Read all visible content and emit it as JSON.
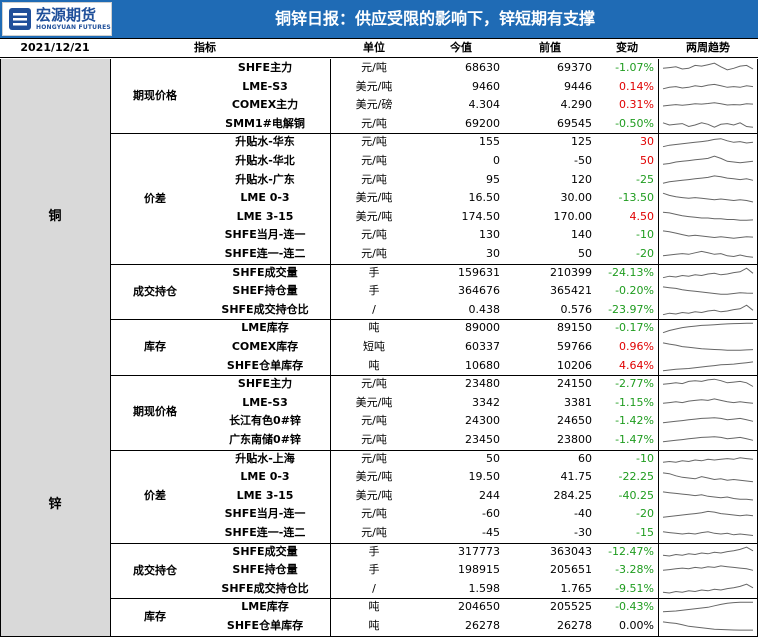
{
  "header": {
    "logo_cn": "宏源期货",
    "logo_en": "HONGYUAN FUTURES",
    "title": "铜锌日报：供应受限的影响下，锌短期有支撑"
  },
  "columns": {
    "date": "2021/12/21",
    "indicator": "指标",
    "unit": "单位",
    "current": "今值",
    "previous": "前值",
    "change": "变动",
    "trend": "两周趋势"
  },
  "sections": [
    {
      "metal": "铜",
      "groups": [
        {
          "name": "期现价格",
          "rows": [
            {
              "label": "SHFE主力",
              "unit": "元/吨",
              "current": "68630",
              "previous": "69370",
              "change": "-1.07%",
              "dir": "neg",
              "trend": [
                0.5,
                0.55,
                0.6,
                0.45,
                0.5,
                0.7,
                0.65,
                0.75,
                0.85,
                0.6,
                0.4,
                0.5,
                0.65,
                0.7,
                0.45
              ]
            },
            {
              "label": "LME-S3",
              "unit": "美元/吨",
              "current": "9460",
              "previous": "9446",
              "change": "0.14%",
              "dir": "pos",
              "trend": [
                0.4,
                0.5,
                0.55,
                0.45,
                0.5,
                0.6,
                0.55,
                0.65,
                0.7,
                0.6,
                0.5,
                0.55,
                0.5,
                0.6,
                0.55
              ]
            },
            {
              "label": "COMEX主力",
              "unit": "美元/磅",
              "current": "4.304",
              "previous": "4.290",
              "change": "0.31%",
              "dir": "pos",
              "trend": [
                0.45,
                0.5,
                0.55,
                0.5,
                0.55,
                0.6,
                0.58,
                0.62,
                0.68,
                0.6,
                0.52,
                0.55,
                0.53,
                0.6,
                0.58
              ]
            },
            {
              "label": "SMM1#电解铜",
              "unit": "元/吨",
              "current": "69200",
              "previous": "69545",
              "change": "-0.50%",
              "dir": "neg",
              "trend": [
                0.6,
                0.45,
                0.5,
                0.55,
                0.35,
                0.45,
                0.6,
                0.5,
                0.3,
                0.5,
                0.55,
                0.45,
                0.6,
                0.35,
                0.3
              ]
            }
          ]
        },
        {
          "name": "价差",
          "rows": [
            {
              "label": "升贴水-华东",
              "unit": "元/吨",
              "current": "155",
              "previous": "125",
              "change": "30",
              "dir": "pos",
              "trend": [
                0.2,
                0.3,
                0.35,
                0.4,
                0.45,
                0.5,
                0.55,
                0.6,
                0.7,
                0.75,
                0.6,
                0.5,
                0.55,
                0.45,
                0.5
              ]
            },
            {
              "label": "升贴水-华北",
              "unit": "元/吨",
              "current": "0",
              "previous": "-50",
              "change": "50",
              "dir": "pos",
              "trend": [
                0.3,
                0.35,
                0.45,
                0.5,
                0.55,
                0.6,
                0.65,
                0.7,
                0.85,
                0.7,
                0.5,
                0.45,
                0.4,
                0.45,
                0.5
              ]
            },
            {
              "label": "升贴水-广东",
              "unit": "元/吨",
              "current": "95",
              "previous": "120",
              "change": "-25",
              "dir": "neg",
              "trend": [
                0.3,
                0.4,
                0.45,
                0.5,
                0.55,
                0.6,
                0.65,
                0.7,
                0.8,
                0.75,
                0.65,
                0.6,
                0.55,
                0.6,
                0.5
              ]
            },
            {
              "label": "LME 0-3",
              "unit": "美元/吨",
              "current": "16.50",
              "previous": "30.00",
              "change": "-13.50",
              "dir": "neg",
              "trend": [
                0.85,
                0.7,
                0.6,
                0.55,
                0.5,
                0.55,
                0.5,
                0.45,
                0.4,
                0.45,
                0.4,
                0.35,
                0.4,
                0.35,
                0.25
              ]
            },
            {
              "label": "LME 3-15",
              "unit": "美元/吨",
              "current": "174.50",
              "previous": "170.00",
              "change": "4.50",
              "dir": "pos",
              "trend": [
                0.85,
                0.8,
                0.7,
                0.6,
                0.55,
                0.5,
                0.45,
                0.45,
                0.4,
                0.4,
                0.35,
                0.35,
                0.3,
                0.3,
                0.32
              ]
            },
            {
              "label": "SHFE当月-连一",
              "unit": "元/吨",
              "current": "130",
              "previous": "140",
              "change": "-10",
              "dir": "neg",
              "trend": [
                0.8,
                0.75,
                0.65,
                0.55,
                0.45,
                0.5,
                0.45,
                0.4,
                0.35,
                0.4,
                0.35,
                0.3,
                0.35,
                0.4,
                0.38
              ]
            },
            {
              "label": "SHFE连一-连二",
              "unit": "元/吨",
              "current": "30",
              "previous": "50",
              "change": "-20",
              "dir": "neg",
              "trend": [
                0.4,
                0.45,
                0.5,
                0.55,
                0.5,
                0.6,
                0.7,
                0.6,
                0.5,
                0.55,
                0.4,
                0.35,
                0.45,
                0.35,
                0.3
              ]
            }
          ]
        },
        {
          "name": "成交持仓",
          "rows": [
            {
              "label": "SHFE成交量",
              "unit": "手",
              "current": "159631",
              "previous": "210399",
              "change": "-24.13%",
              "dir": "neg",
              "trend": [
                0.2,
                0.3,
                0.25,
                0.35,
                0.3,
                0.4,
                0.35,
                0.45,
                0.5,
                0.4,
                0.45,
                0.55,
                0.6,
                0.85,
                0.5
              ]
            },
            {
              "label": "SHEF持仓量",
              "unit": "手",
              "current": "364676",
              "previous": "365421",
              "change": "-0.20%",
              "dir": "neg",
              "trend": [
                0.8,
                0.75,
                0.7,
                0.6,
                0.55,
                0.5,
                0.45,
                0.4,
                0.35,
                0.3,
                0.3,
                0.35,
                0.4,
                0.38,
                0.37
              ]
            },
            {
              "label": "SHFE成交持仓比",
              "unit": "/",
              "current": "0.438",
              "previous": "0.576",
              "change": "-23.97%",
              "dir": "neg",
              "trend": [
                0.2,
                0.3,
                0.25,
                0.35,
                0.3,
                0.4,
                0.35,
                0.45,
                0.5,
                0.4,
                0.45,
                0.55,
                0.6,
                0.85,
                0.5
              ]
            }
          ]
        },
        {
          "name": "库存",
          "rows": [
            {
              "label": "LME库存",
              "unit": "吨",
              "current": "89000",
              "previous": "89150",
              "change": "-0.17%",
              "dir": "neg",
              "trend": [
                0.2,
                0.35,
                0.45,
                0.55,
                0.6,
                0.65,
                0.7,
                0.72,
                0.75,
                0.78,
                0.8,
                0.82,
                0.83,
                0.84,
                0.84
              ]
            },
            {
              "label": "COMEX库存",
              "unit": "短吨",
              "current": "60337",
              "previous": "59766",
              "change": "0.96%",
              "dir": "pos",
              "trend": [
                0.8,
                0.72,
                0.65,
                0.55,
                0.5,
                0.45,
                0.4,
                0.38,
                0.35,
                0.33,
                0.3,
                0.3,
                0.3,
                0.32,
                0.34
              ]
            },
            {
              "label": "SHFE仓单库存",
              "unit": "吨",
              "current": "10680",
              "previous": "10206",
              "change": "4.64%",
              "dir": "pos",
              "trend": [
                0.2,
                0.25,
                0.3,
                0.32,
                0.35,
                0.4,
                0.45,
                0.5,
                0.55,
                0.6,
                0.62,
                0.65,
                0.7,
                0.75,
                0.8
              ]
            }
          ]
        }
      ]
    },
    {
      "metal": "锌",
      "groups": [
        {
          "name": "期现价格",
          "rows": [
            {
              "label": "SHFE主力",
              "unit": "元/吨",
              "current": "23480",
              "previous": "24150",
              "change": "-2.77%",
              "dir": "neg",
              "trend": [
                0.5,
                0.55,
                0.6,
                0.55,
                0.7,
                0.75,
                0.7,
                0.8,
                0.85,
                0.75,
                0.6,
                0.65,
                0.7,
                0.6,
                0.35
              ]
            },
            {
              "label": "LME-S3",
              "unit": "美元/吨",
              "current": "3342",
              "previous": "3381",
              "change": "-1.15%",
              "dir": "neg",
              "trend": [
                0.5,
                0.55,
                0.6,
                0.55,
                0.65,
                0.7,
                0.75,
                0.7,
                0.8,
                0.7,
                0.6,
                0.55,
                0.6,
                0.55,
                0.5
              ]
            },
            {
              "label": "长江有色0#锌",
              "unit": "元/吨",
              "current": "24300",
              "previous": "24650",
              "change": "-1.42%",
              "dir": "neg",
              "trend": [
                0.4,
                0.45,
                0.5,
                0.55,
                0.6,
                0.65,
                0.7,
                0.72,
                0.75,
                0.7,
                0.6,
                0.65,
                0.7,
                0.6,
                0.5
              ]
            },
            {
              "label": "广东南储0#锌",
              "unit": "元/吨",
              "current": "23450",
              "previous": "23800",
              "change": "-1.47%",
              "dir": "neg",
              "trend": [
                0.4,
                0.45,
                0.5,
                0.55,
                0.6,
                0.65,
                0.7,
                0.72,
                0.75,
                0.7,
                0.6,
                0.65,
                0.7,
                0.6,
                0.5
              ]
            }
          ]
        },
        {
          "name": "价差",
          "rows": [
            {
              "label": "升贴水-上海",
              "unit": "元/吨",
              "current": "50",
              "previous": "60",
              "change": "-10",
              "dir": "neg",
              "trend": [
                0.3,
                0.35,
                0.3,
                0.4,
                0.35,
                0.45,
                0.4,
                0.5,
                0.45,
                0.5,
                0.55,
                0.5,
                0.6,
                0.55,
                0.5
              ]
            },
            {
              "label": "LME 0-3",
              "unit": "美元/吨",
              "current": "19.50",
              "previous": "41.75",
              "change": "-22.25",
              "dir": "neg",
              "trend": [
                0.8,
                0.75,
                0.6,
                0.5,
                0.45,
                0.4,
                0.55,
                0.45,
                0.35,
                0.4,
                0.3,
                0.35,
                0.3,
                0.25,
                0.2
              ]
            },
            {
              "label": "LME 3-15",
              "unit": "美元/吨",
              "current": "244",
              "previous": "284.25",
              "change": "-40.25",
              "dir": "neg",
              "trend": [
                0.8,
                0.75,
                0.7,
                0.65,
                0.6,
                0.55,
                0.6,
                0.5,
                0.45,
                0.4,
                0.45,
                0.35,
                0.3,
                0.3,
                0.25
              ]
            },
            {
              "label": "SHFE当月-连一",
              "unit": "元/吨",
              "current": "-60",
              "previous": "-40",
              "change": "-20",
              "dir": "neg",
              "trend": [
                0.3,
                0.35,
                0.4,
                0.45,
                0.5,
                0.55,
                0.6,
                0.7,
                0.65,
                0.55,
                0.5,
                0.45,
                0.4,
                0.45,
                0.4
              ]
            },
            {
              "label": "SHFE连一-连二",
              "unit": "元/吨",
              "current": "-45",
              "previous": "-30",
              "change": "-15",
              "dir": "neg",
              "trend": [
                0.6,
                0.55,
                0.5,
                0.45,
                0.5,
                0.45,
                0.55,
                0.6,
                0.5,
                0.45,
                0.5,
                0.4,
                0.45,
                0.4,
                0.35
              ]
            }
          ]
        },
        {
          "name": "成交持仓",
          "rows": [
            {
              "label": "SHFE成交量",
              "unit": "手",
              "current": "317773",
              "previous": "363043",
              "change": "-12.47%",
              "dir": "neg",
              "trend": [
                0.3,
                0.25,
                0.35,
                0.3,
                0.4,
                0.35,
                0.45,
                0.4,
                0.5,
                0.45,
                0.55,
                0.6,
                0.7,
                0.85,
                0.6
              ]
            },
            {
              "label": "SHFE持仓量",
              "unit": "手",
              "current": "198915",
              "previous": "205651",
              "change": "-3.28%",
              "dir": "neg",
              "trend": [
                0.5,
                0.55,
                0.6,
                0.65,
                0.6,
                0.7,
                0.65,
                0.75,
                0.7,
                0.8,
                0.75,
                0.7,
                0.65,
                0.6,
                0.5
              ]
            },
            {
              "label": "SHFE成交持仓比",
              "unit": "/",
              "current": "1.598",
              "previous": "1.765",
              "change": "-9.51%",
              "dir": "neg",
              "trend": [
                0.3,
                0.25,
                0.35,
                0.3,
                0.4,
                0.35,
                0.45,
                0.4,
                0.5,
                0.45,
                0.55,
                0.6,
                0.7,
                0.85,
                0.6
              ]
            }
          ]
        },
        {
          "name": "库存",
          "rows": [
            {
              "label": "LME库存",
              "unit": "吨",
              "current": "204650",
              "previous": "205525",
              "change": "-0.43%",
              "dir": "neg",
              "trend": [
                0.2,
                0.22,
                0.25,
                0.3,
                0.35,
                0.4,
                0.45,
                0.5,
                0.6,
                0.7,
                0.78,
                0.82,
                0.84,
                0.85,
                0.85
              ]
            },
            {
              "label": "SHFE仓单库存",
              "unit": "吨",
              "current": "26278",
              "previous": "26278",
              "change": "0.00%",
              "dir": "zero",
              "trend": [
                0.8,
                0.75,
                0.7,
                0.6,
                0.5,
                0.45,
                0.4,
                0.35,
                0.3,
                0.28,
                0.26,
                0.25,
                0.24,
                0.24,
                0.24
              ]
            }
          ]
        }
      ]
    }
  ]
}
